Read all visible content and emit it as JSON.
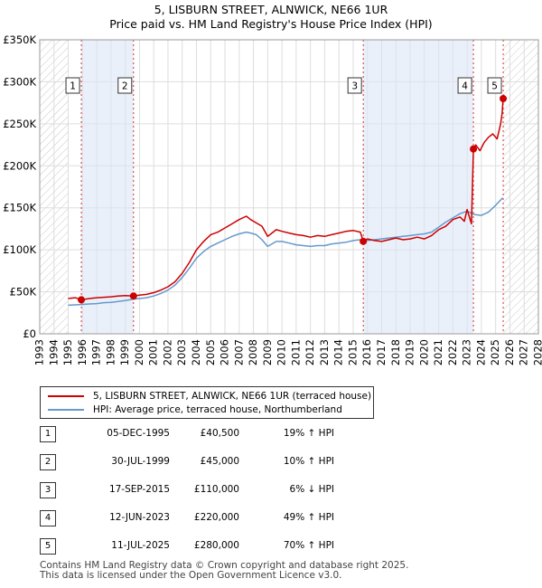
{
  "chart_data": {
    "type": "line",
    "title": "5, LISBURN STREET, ALNWICK, NE66 1UR",
    "subtitle": "Price paid vs. HM Land Registry's House Price Index (HPI)",
    "x_range": [
      1993,
      2028
    ],
    "ylim": [
      0,
      350000
    ],
    "y_ticks": [
      0,
      50000,
      100000,
      150000,
      200000,
      250000,
      300000,
      350000
    ],
    "y_tick_labels": [
      "£0",
      "£50K",
      "£100K",
      "£150K",
      "£200K",
      "£250K",
      "£300K",
      "£350K"
    ],
    "x_ticks": [
      1993,
      1994,
      1995,
      1996,
      1997,
      1998,
      1999,
      2000,
      2001,
      2002,
      2003,
      2004,
      2005,
      2006,
      2007,
      2008,
      2009,
      2010,
      2011,
      2012,
      2013,
      2014,
      2015,
      2016,
      2017,
      2018,
      2019,
      2020,
      2021,
      2022,
      2023,
      2024,
      2025,
      2026,
      2027,
      2028
    ],
    "x_tick_labels": [
      "1993",
      "1994",
      "1995",
      "1996",
      "1997",
      "1998",
      "1999",
      "2000",
      "2001",
      "2002",
      "2003",
      "2004",
      "2005",
      "2006",
      "2007",
      "2008",
      "2009",
      "2010",
      "2011",
      "2012",
      "2013",
      "2014",
      "2015",
      "2016",
      "2017",
      "2018",
      "2019",
      "2020",
      "2021",
      "2022",
      "2023",
      "2024",
      "2025",
      "2026",
      "2027",
      "2028"
    ],
    "hatched_before": 1995.0,
    "hatched_after": 2025.53,
    "sale_years": [
      1995.92,
      1999.58,
      2015.71,
      2023.44,
      2025.53
    ],
    "series": [
      {
        "name": "5, LISBURN STREET, ALNWICK, NE66 1UR (terraced house)",
        "color": "#cc0000",
        "x": [
          1995.0,
          1995.5,
          1995.92,
          1996.5,
          1997.0,
          1997.5,
          1998.0,
          1998.5,
          1999.0,
          1999.58,
          2000.0,
          2000.5,
          2001.0,
          2001.5,
          2002.0,
          2002.5,
          2003.0,
          2003.5,
          2004.0,
          2004.5,
          2005.0,
          2005.5,
          2006.0,
          2006.5,
          2007.0,
          2007.5,
          2007.8,
          2008.2,
          2008.6,
          2009.0,
          2009.3,
          2009.6,
          2010.0,
          2010.5,
          2011.0,
          2011.5,
          2012.0,
          2012.5,
          2013.0,
          2013.5,
          2014.0,
          2014.5,
          2015.0,
          2015.5,
          2015.71,
          2016.0,
          2016.5,
          2017.0,
          2017.5,
          2018.0,
          2018.5,
          2019.0,
          2019.5,
          2020.0,
          2020.5,
          2021.0,
          2021.5,
          2022.0,
          2022.5,
          2022.8,
          2023.0,
          2023.3,
          2023.44,
          2023.6,
          2023.9,
          2024.2,
          2024.5,
          2024.8,
          2025.1,
          2025.35,
          2025.45,
          2025.53
        ],
        "values": [
          42000,
          43000,
          40500,
          42000,
          43000,
          43500,
          44000,
          45000,
          45500,
          45000,
          46000,
          47000,
          49000,
          52000,
          56000,
          62000,
          72000,
          85000,
          100000,
          110000,
          118000,
          121000,
          126000,
          131000,
          136000,
          140000,
          136000,
          132000,
          128000,
          116000,
          120000,
          124000,
          122000,
          120000,
          118000,
          117000,
          115000,
          117000,
          116000,
          118000,
          120000,
          122000,
          123000,
          121000,
          110000,
          113000,
          111000,
          110000,
          112000,
          114000,
          112000,
          113000,
          115000,
          113000,
          117000,
          124000,
          128000,
          136000,
          139000,
          134000,
          148000,
          131000,
          220000,
          225000,
          218000,
          228000,
          234000,
          238000,
          232000,
          250000,
          262000,
          280000
        ]
      },
      {
        "name": "HPI: Average price, terraced house, Northumberland",
        "color": "#6699cc",
        "x": [
          1995.0,
          1995.5,
          1996.0,
          1996.5,
          1997.0,
          1997.5,
          1998.0,
          1998.5,
          1999.0,
          1999.5,
          2000.0,
          2000.5,
          2001.0,
          2001.5,
          2002.0,
          2002.5,
          2003.0,
          2003.5,
          2004.0,
          2004.5,
          2005.0,
          2005.5,
          2006.0,
          2006.5,
          2007.0,
          2007.5,
          2007.8,
          2008.2,
          2008.6,
          2009.0,
          2009.3,
          2009.6,
          2010.0,
          2010.5,
          2011.0,
          2011.5,
          2012.0,
          2012.5,
          2013.0,
          2013.5,
          2014.0,
          2014.5,
          2015.0,
          2015.5,
          2016.0,
          2016.5,
          2017.0,
          2017.5,
          2018.0,
          2018.5,
          2019.0,
          2019.5,
          2020.0,
          2020.5,
          2021.0,
          2021.5,
          2022.0,
          2022.5,
          2023.0,
          2023.5,
          2024.0,
          2024.5,
          2025.0,
          2025.5
        ],
        "values": [
          34000,
          34500,
          35000,
          35500,
          36000,
          37000,
          37500,
          38500,
          39500,
          41000,
          42000,
          43000,
          45000,
          48000,
          52000,
          58000,
          67000,
          78000,
          90000,
          98000,
          104000,
          108000,
          112000,
          116000,
          119000,
          121000,
          120000,
          118000,
          112000,
          104000,
          107000,
          110000,
          110000,
          108000,
          106000,
          105000,
          104000,
          105000,
          105000,
          107000,
          108000,
          109000,
          111000,
          112000,
          111000,
          112000,
          113000,
          114000,
          115000,
          116000,
          117000,
          118000,
          119000,
          121000,
          127000,
          133000,
          138000,
          143000,
          146000,
          142000,
          141000,
          145000,
          153000,
          162000
        ]
      }
    ]
  },
  "legend": {
    "item1": "5, LISBURN STREET, ALNWICK, NE66 1UR (terraced house)",
    "item2": "HPI: Average price, terraced house, Northumberland"
  },
  "sales": [
    {
      "num": "1",
      "date": "05-DEC-1995",
      "price": "£40,500",
      "hpi": "19% ↑ HPI"
    },
    {
      "num": "2",
      "date": "30-JUL-1999",
      "price": "£45,000",
      "hpi": "10% ↑ HPI"
    },
    {
      "num": "3",
      "date": "17-SEP-2015",
      "price": "£110,000",
      "hpi": "6% ↓ HPI"
    },
    {
      "num": "4",
      "date": "12-JUN-2023",
      "price": "£220,000",
      "hpi": "49% ↑ HPI"
    },
    {
      "num": "5",
      "date": "11-JUL-2025",
      "price": "£280,000",
      "hpi": "70% ↑ HPI"
    }
  ],
  "footer": {
    "line1": "Contains HM Land Registry data © Crown copyright and database right 2025.",
    "line2": "This data is licensed under the Open Government Licence v3.0."
  }
}
